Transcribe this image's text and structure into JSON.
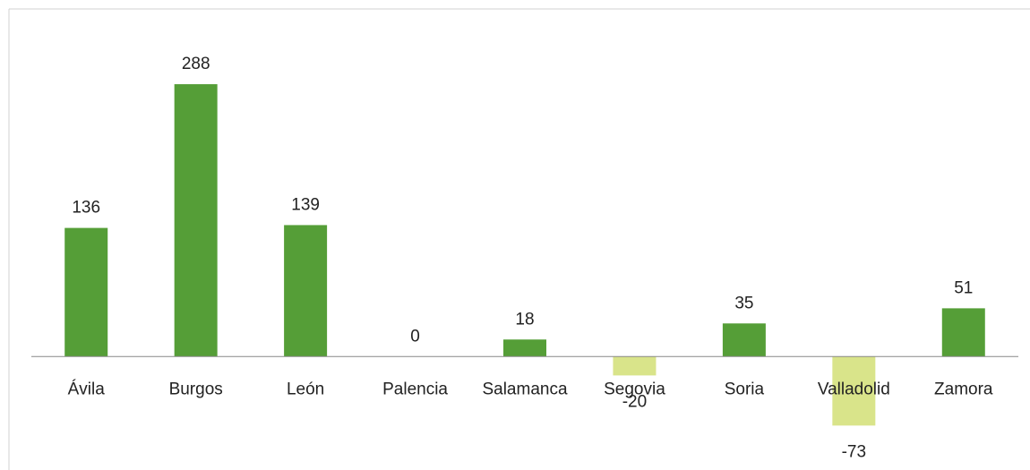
{
  "chart_data": {
    "type": "bar",
    "categories": [
      "Ávila",
      "Burgos",
      "León",
      "Palencia",
      "Salamanca",
      "Segovia",
      "Soria",
      "Valladolid",
      "Zamora"
    ],
    "values": [
      136,
      288,
      139,
      0,
      18,
      -20,
      35,
      -73,
      51
    ],
    "color": "#559e37",
    "negative_color": "#d9e48a",
    "ylim": [
      -120,
      360
    ]
  }
}
